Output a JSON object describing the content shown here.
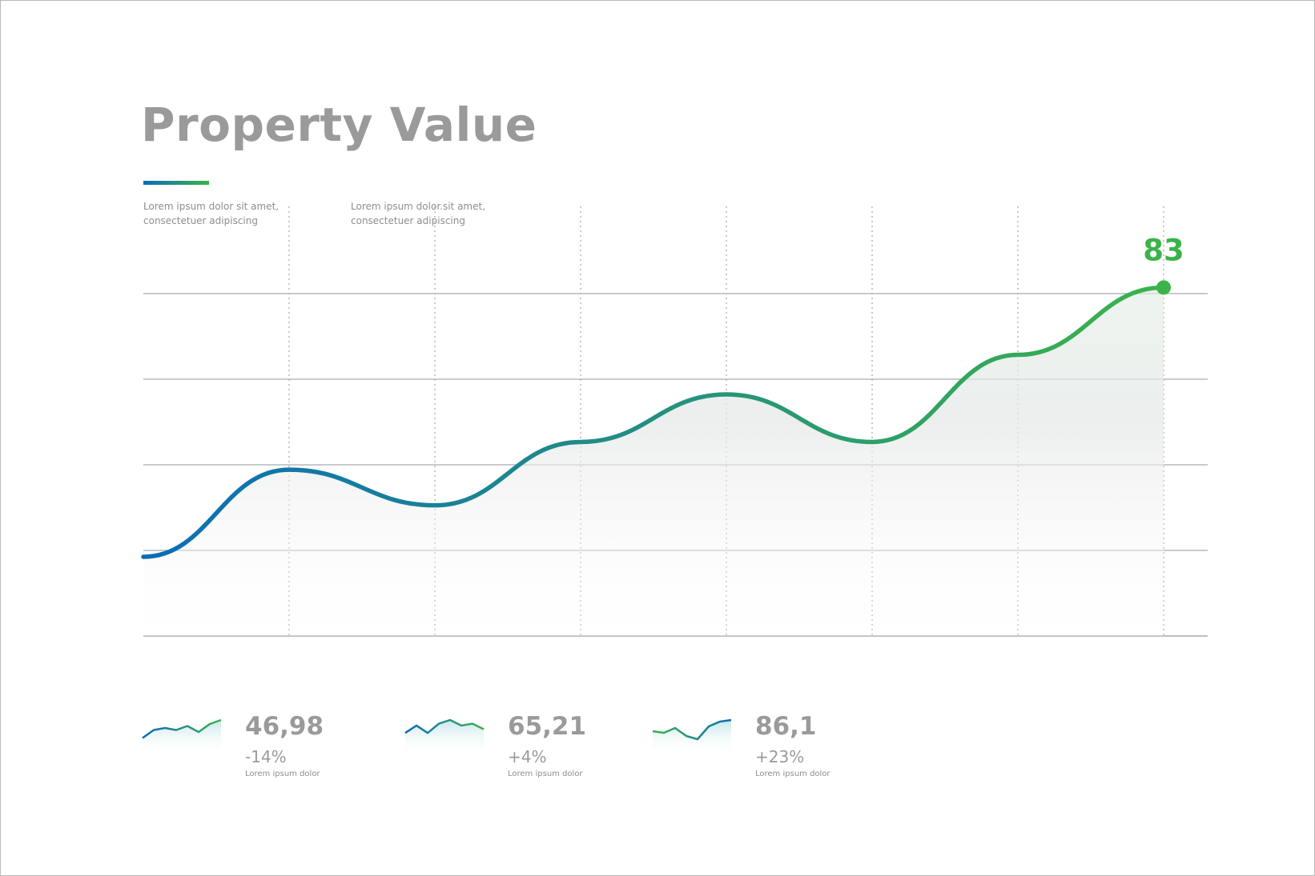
{
  "header": {
    "title": "Property Value"
  },
  "notes": [
    {
      "line1": "Lorem ipsum dolor sit amet,",
      "line2": "consectetuer adipiscing"
    },
    {
      "line1": "Lorem ipsum dolor.sit amet,",
      "line2": "consectetuer adipiscing"
    }
  ],
  "colors": {
    "start": "#0b6db7",
    "end": "#3bb34a",
    "text": "#9a9a9a"
  },
  "chart_data": {
    "type": "line",
    "title": "Property Value",
    "points": [
      {
        "x": 0,
        "y": 20
      },
      {
        "x": 1,
        "y": 42
      },
      {
        "x": 2,
        "y": 33
      },
      {
        "x": 3,
        "y": 49
      },
      {
        "x": 4,
        "y": 61
      },
      {
        "x": 5,
        "y": 49
      },
      {
        "x": 6,
        "y": 71
      },
      {
        "x": 7,
        "y": 88
      }
    ],
    "ylim": [
      0,
      100
    ],
    "highlight": {
      "label": "83"
    },
    "grid": true,
    "legend": "none"
  },
  "stats": [
    {
      "value": "46,98",
      "change": "-14%",
      "label": "Lorem ipsum dolor",
      "spark": [
        3,
        7,
        8,
        7,
        9,
        6,
        10,
        12
      ]
    },
    {
      "value": "65,21",
      "change": "+4%",
      "label": "Lorem ipsum dolor",
      "spark": [
        6,
        10,
        6,
        11,
        13,
        10,
        11,
        8
      ]
    },
    {
      "value": "86,1",
      "change": "+23%",
      "label": "Lorem ipsum dolor",
      "spark": [
        8,
        7,
        10,
        5,
        3,
        11,
        14,
        15
      ]
    }
  ]
}
